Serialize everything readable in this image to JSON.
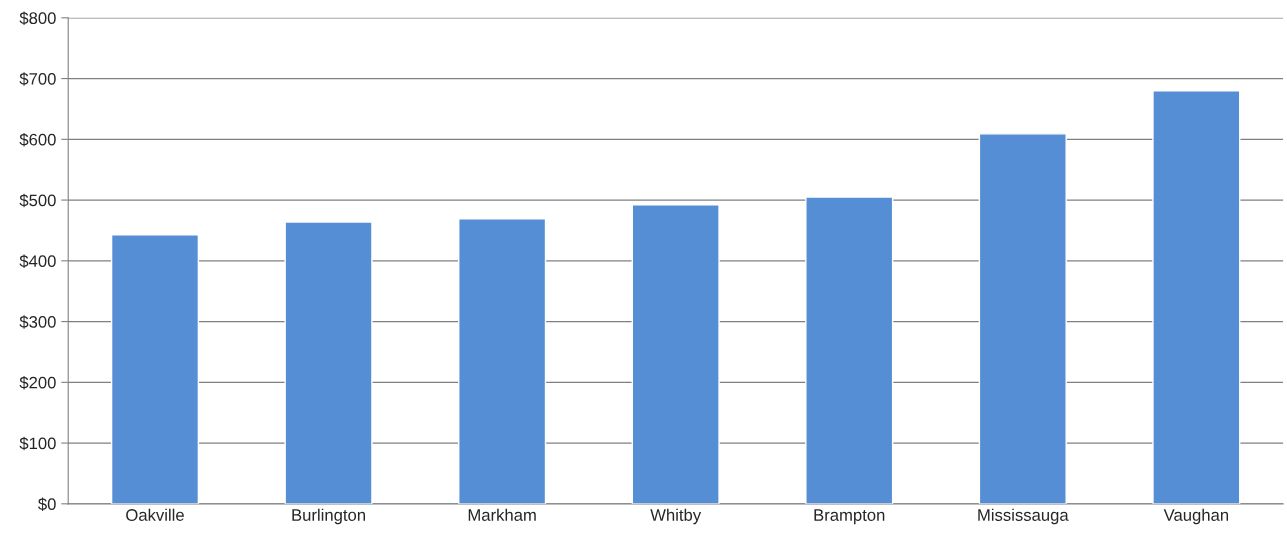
{
  "chart_data": {
    "type": "bar",
    "categories": [
      "Oakville",
      "Burlington",
      "Markham",
      "Whitby",
      "Brampton",
      "Mississauga",
      "Vaughan"
    ],
    "values": [
      443,
      464,
      469,
      492,
      505,
      609,
      680
    ],
    "color": "#558ed5",
    "ylim": [
      0,
      800
    ],
    "yticks": [
      {
        "value": 0,
        "label": "$0"
      },
      {
        "value": 100,
        "label": "$100"
      },
      {
        "value": 200,
        "label": "$200"
      },
      {
        "value": 300,
        "label": "$300"
      },
      {
        "value": 400,
        "label": "$400"
      },
      {
        "value": 500,
        "label": "$500"
      },
      {
        "value": 600,
        "label": "$600"
      },
      {
        "value": 700,
        "label": "$700"
      },
      {
        "value": 800,
        "label": "$800"
      }
    ],
    "grid": "y"
  }
}
